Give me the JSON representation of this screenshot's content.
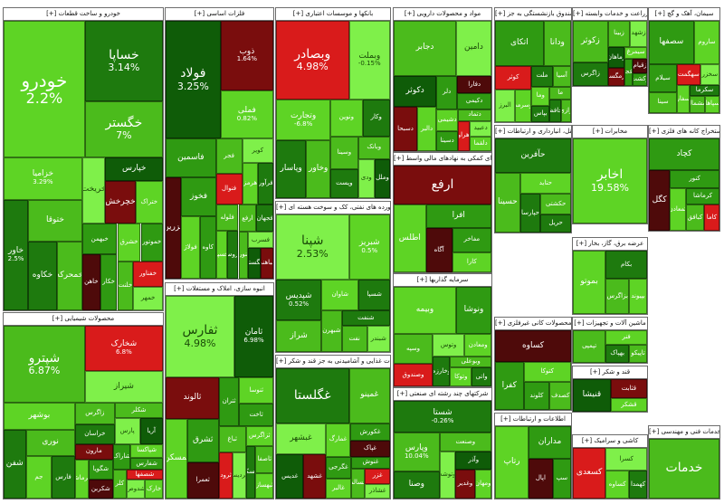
{
  "sectors": [
    {
      "label": "[+] خودرو و ساخت قطعات",
      "tiles": [
        {
          "n": "خودرو",
          "p": "2.2%"
        },
        {
          "n": "خساپا",
          "p": "3.14%"
        },
        {
          "n": "خگستر",
          "p": "7%"
        },
        {
          "n": "خزامیا",
          "p": "3.29%"
        },
        {
          "n": "خاور",
          "p": "2.5%"
        },
        {
          "n": "ختوقا"
        },
        {
          "n": "خکاوه"
        },
        {
          "n": "خمحرکه"
        },
        {
          "n": "خریخت"
        },
        {
          "n": "خپارس"
        },
        {
          "n": "خچرخش"
        },
        {
          "n": "ختراک"
        },
        {
          "n": "خبهمن"
        },
        {
          "n": "خاهن"
        },
        {
          "n": "خکار"
        },
        {
          "n": "خشرق"
        },
        {
          "n": "خموتور"
        },
        {
          "n": "خلنت"
        },
        {
          "n": "خفناور"
        },
        {
          "n": "خمهر"
        }
      ]
    },
    {
      "label": "[+] فلزات اساسی",
      "tiles": [
        {
          "n": "فولاد",
          "p": "3.25%"
        },
        {
          "n": "ذوب",
          "p": "1.64%"
        },
        {
          "n": "فملی",
          "p": "0.82%"
        },
        {
          "n": "فاسمین"
        },
        {
          "n": "فزرین"
        },
        {
          "n": "فخوز"
        },
        {
          "n": "فولاژ"
        },
        {
          "n": "کاوه"
        },
        {
          "n": "فجر"
        },
        {
          "n": "فنوال"
        },
        {
          "n": "کویر"
        },
        {
          "n": "هرمز"
        },
        {
          "n": "فرآور"
        },
        {
          "n": "فلوله"
        },
        {
          "n": "فسپا"
        },
        {
          "n": "فروس"
        },
        {
          "n": "ارفع"
        },
        {
          "n": "فجهان"
        },
        {
          "n": "فنورد"
        },
        {
          "n": "فسرب"
        },
        {
          "n": "فگستر"
        },
        {
          "n": "فباهنر"
        }
      ]
    },
    {
      "label": "[+] بانکها و موسسات اعتباری",
      "tiles": [
        {
          "n": "وبصادر",
          "p": "4.98%"
        },
        {
          "n": "وبملت",
          "p": "-0.15%"
        },
        {
          "n": "وتجارت",
          "p": "-6.8%"
        },
        {
          "n": "وپاسار"
        },
        {
          "n": "وخاور"
        },
        {
          "n": "ونوین"
        },
        {
          "n": "وکار"
        },
        {
          "n": "وسینا"
        },
        {
          "n": "وپست"
        },
        {
          "n": "وبانک"
        },
        {
          "n": "ودی"
        },
        {
          "n": "وملل"
        }
      ]
    },
    {
      "label": "[+] مواد و محصولات دارویی",
      "tiles": [
        {
          "n": "دجابر"
        },
        {
          "n": "دامین"
        },
        {
          "n": "دکوثر"
        },
        {
          "n": "دسبحا"
        },
        {
          "n": "دالبر"
        },
        {
          "n": "دلر"
        },
        {
          "n": "دفارا"
        },
        {
          "n": "دکیمی"
        },
        {
          "n": "دشیمی"
        },
        {
          "n": "دسینا"
        },
        {
          "n": "دتماد"
        },
        {
          "n": "دزهراوی"
        },
        {
          "n": "دعبید"
        },
        {
          "n": "دلقما"
        }
      ]
    },
    {
      "label": "[+] بیمه و صندوق بازنشستگی به جز",
      "tiles": [
        {
          "n": "اتکای"
        },
        {
          "n": "ودانا"
        },
        {
          "n": "کوثر"
        },
        {
          "n": "البرز"
        },
        {
          "n": "وسرمد"
        },
        {
          "n": "ملت"
        },
        {
          "n": "آسیا"
        },
        {
          "n": "وما"
        },
        {
          "n": "بپاس"
        },
        {
          "n": "ما"
        },
        {
          "n": "حافظ"
        },
        {
          "n": "رازی"
        }
      ]
    },
    {
      "label": "[+] زراعت و خدمات وابسته",
      "tiles": [
        {
          "n": "زکوثر"
        },
        {
          "n": "زاگرس"
        },
        {
          "n": "زبینا"
        },
        {
          "n": "زشهد"
        },
        {
          "n": "زماهان"
        },
        {
          "n": "زمگسا"
        },
        {
          "n": "سیمرغ"
        },
        {
          "n": "زفجر"
        },
        {
          "n": "زقیام"
        },
        {
          "n": "زکشت"
        }
      ]
    },
    {
      "label": "[+] سیمان، آهک و گچ",
      "tiles": [
        {
          "n": "سصفها"
        },
        {
          "n": "ساروم"
        },
        {
          "n": "سیلام"
        },
        {
          "n": "سینا"
        },
        {
          "n": "سهگمت"
        },
        {
          "n": "سخزر"
        },
        {
          "n": "سفار"
        },
        {
          "n": "سکرما"
        },
        {
          "n": "سشمال"
        },
        {
          "n": "سپاها"
        }
      ]
    },
    {
      "label": "[+] مخابرات",
      "tiles": [
        {
          "n": "اخابر",
          "p": "19.58%"
        }
      ]
    },
    {
      "label": "[+] استخراج کانه های فلزی",
      "tiles": [
        {
          "n": "کچاد"
        },
        {
          "n": "کگل"
        },
        {
          "n": "کنور"
        },
        {
          "n": "کمعادن"
        },
        {
          "n": "کرماشا"
        },
        {
          "n": "کبافق"
        },
        {
          "n": "کاما"
        }
      ]
    },
    {
      "label": "[+] حمل ونقل، انبارداری و ارتباطات",
      "tiles": [
        {
          "n": "حآفرین"
        },
        {
          "n": "حسینا"
        },
        {
          "n": "حتاید"
        },
        {
          "n": "حپارسا"
        },
        {
          "n": "حکشتی"
        },
        {
          "n": "حریل"
        }
      ]
    },
    {
      "label": "[+] فعالیتهای کمکی به نهادهای مالی واسط",
      "tiles": [
        {
          "n": "ارفع"
        },
        {
          "n": "اطلس"
        },
        {
          "n": "افرا"
        },
        {
          "n": "آگاه"
        },
        {
          "n": "مفاخر"
        },
        {
          "n": "کارا"
        }
      ]
    },
    {
      "label": "[+] فراورده های نفتی، کک و سوخت هسته ای",
      "tiles": [
        {
          "n": "شپنا",
          "p": "2.53%"
        },
        {
          "n": "شبریز",
          "p": "0.5%"
        },
        {
          "n": "شپدیس",
          "p": "0.52%"
        },
        {
          "n": "شراز"
        },
        {
          "n": "شاوان"
        },
        {
          "n": "شسپا"
        },
        {
          "n": "شبهرن"
        },
        {
          "n": "شنفت"
        },
        {
          "n": "نفت"
        },
        {
          "n": "شبندر"
        }
      ]
    },
    {
      "label": "[+] انبوه سازی، املاک و مستغلات",
      "tiles": [
        {
          "n": "ثفارس",
          "p": "4.98%"
        },
        {
          "n": "ثامان",
          "p": "6.98%"
        },
        {
          "n": "ثالوند"
        },
        {
          "n": "ثمسکن"
        },
        {
          "n": "ثشرق"
        },
        {
          "n": "ثعمرا"
        },
        {
          "n": "ثتران"
        },
        {
          "n": "ثنوسا"
        },
        {
          "n": "ثاخت"
        },
        {
          "n": "ثباغ"
        },
        {
          "n": "ثرود"
        },
        {
          "n": "ثپردیس"
        },
        {
          "n": "ثزاگرس"
        },
        {
          "n": "ثمسکن"
        },
        {
          "n": "ثاصفا"
        },
        {
          "n": "ثبهساز"
        }
      ]
    },
    {
      "label": "[+] محصولات شیمیایی",
      "tiles": [
        {
          "n": "شپترو",
          "p": "6.87%"
        },
        {
          "n": "شخارک",
          "p": "6.8%"
        },
        {
          "n": "شیراز"
        },
        {
          "n": "بوشهر"
        },
        {
          "n": "شفن"
        },
        {
          "n": "نوری"
        },
        {
          "n": "جم"
        },
        {
          "n": "فارس"
        },
        {
          "n": "زاگرس"
        },
        {
          "n": "خراسان"
        },
        {
          "n": "شکلر"
        },
        {
          "n": "پارس"
        },
        {
          "n": "آریا"
        },
        {
          "n": "مارون"
        },
        {
          "n": "کرماشا"
        },
        {
          "n": "شگویا"
        },
        {
          "n": "شکربن"
        },
        {
          "n": "شاراک"
        },
        {
          "n": "شپاکسا"
        },
        {
          "n": "شفارس"
        },
        {
          "n": "کلر"
        },
        {
          "n": "شصفها"
        },
        {
          "n": "شدوص"
        },
        {
          "n": "خارک"
        }
      ]
    },
    {
      "label": "[+] محصولات غذایی و آشامیدنی به جز قند و شکر",
      "tiles": [
        {
          "n": "غگلستا"
        },
        {
          "n": "غمینو"
        },
        {
          "n": "غبشهر"
        },
        {
          "n": "غدیس"
        },
        {
          "n": "غشهد"
        },
        {
          "n": "غمارگ"
        },
        {
          "n": "غکورش"
        },
        {
          "n": "غپاک"
        },
        {
          "n": "غگرجی"
        },
        {
          "n": "غالبر"
        },
        {
          "n": "غنوش"
        },
        {
          "n": "غسالم"
        },
        {
          "n": "غزر"
        },
        {
          "n": "غشاذر"
        }
      ]
    },
    {
      "label": "[+] سرمایه گذاریها",
      "tiles": [
        {
          "n": "وبیمه"
        },
        {
          "n": "ونوشا"
        },
        {
          "n": "وسپه"
        },
        {
          "n": "وصندوق"
        },
        {
          "n": "وتوس"
        },
        {
          "n": "ومعادن"
        },
        {
          "n": "وخارزم"
        },
        {
          "n": "وبوعلی"
        },
        {
          "n": "وتوکا"
        },
        {
          "n": "واتی"
        }
      ]
    },
    {
      "label": "[+] شرکتهای چند رشته ای صنعتی",
      "tiles": [
        {
          "n": "شستا",
          "p": "-0.26%"
        },
        {
          "n": "وپارس",
          "p": "10.04%"
        },
        {
          "n": "وصنا"
        },
        {
          "n": "وصنعت"
        },
        {
          "n": "وتوشه"
        },
        {
          "n": "وآذر"
        },
        {
          "n": "وغدیر"
        },
        {
          "n": "ومهان"
        }
      ]
    },
    {
      "label": "[+] سایر محصولات کانی غیرفلزی",
      "tiles": [
        {
          "n": "کساوه"
        },
        {
          "n": "کفرا"
        },
        {
          "n": "کتوکا"
        },
        {
          "n": "کلوند"
        },
        {
          "n": "کصدف"
        }
      ]
    },
    {
      "label": "[+] ماشین آلات و تجهیزات",
      "tiles": [
        {
          "n": "تپمپی"
        },
        {
          "n": "فنر"
        },
        {
          "n": "بهپاک"
        },
        {
          "n": "تاپیکو"
        }
      ]
    },
    {
      "label": "[+] اطلاعات و ارتباطات",
      "tiles": [
        {
          "n": "رتاپ"
        },
        {
          "n": "مداران"
        },
        {
          "n": "اپال"
        },
        {
          "n": "سپ"
        }
      ]
    },
    {
      "label": "[+] عرضه برق، گاز، بخار",
      "tiles": [
        {
          "n": "بموتو"
        },
        {
          "n": "بکام"
        },
        {
          "n": "بزاگرس"
        },
        {
          "n": "بپیوند"
        }
      ]
    },
    {
      "label": "[+] قند و شکر",
      "tiles": [
        {
          "n": "قنیشا"
        },
        {
          "n": "قثابت"
        },
        {
          "n": "قشکر"
        }
      ]
    },
    {
      "label": "[+] کاشی و سرامیک",
      "tiles": [
        {
          "n": "کسعدی"
        },
        {
          "n": "کسرا"
        },
        {
          "n": "کساوه"
        },
        {
          "n": "کهمدا"
        }
      ]
    },
    {
      "label": "[+] خدمات فنی و مهندسی",
      "tiles": [
        {
          "n": "خدمات"
        }
      ]
    }
  ]
}
